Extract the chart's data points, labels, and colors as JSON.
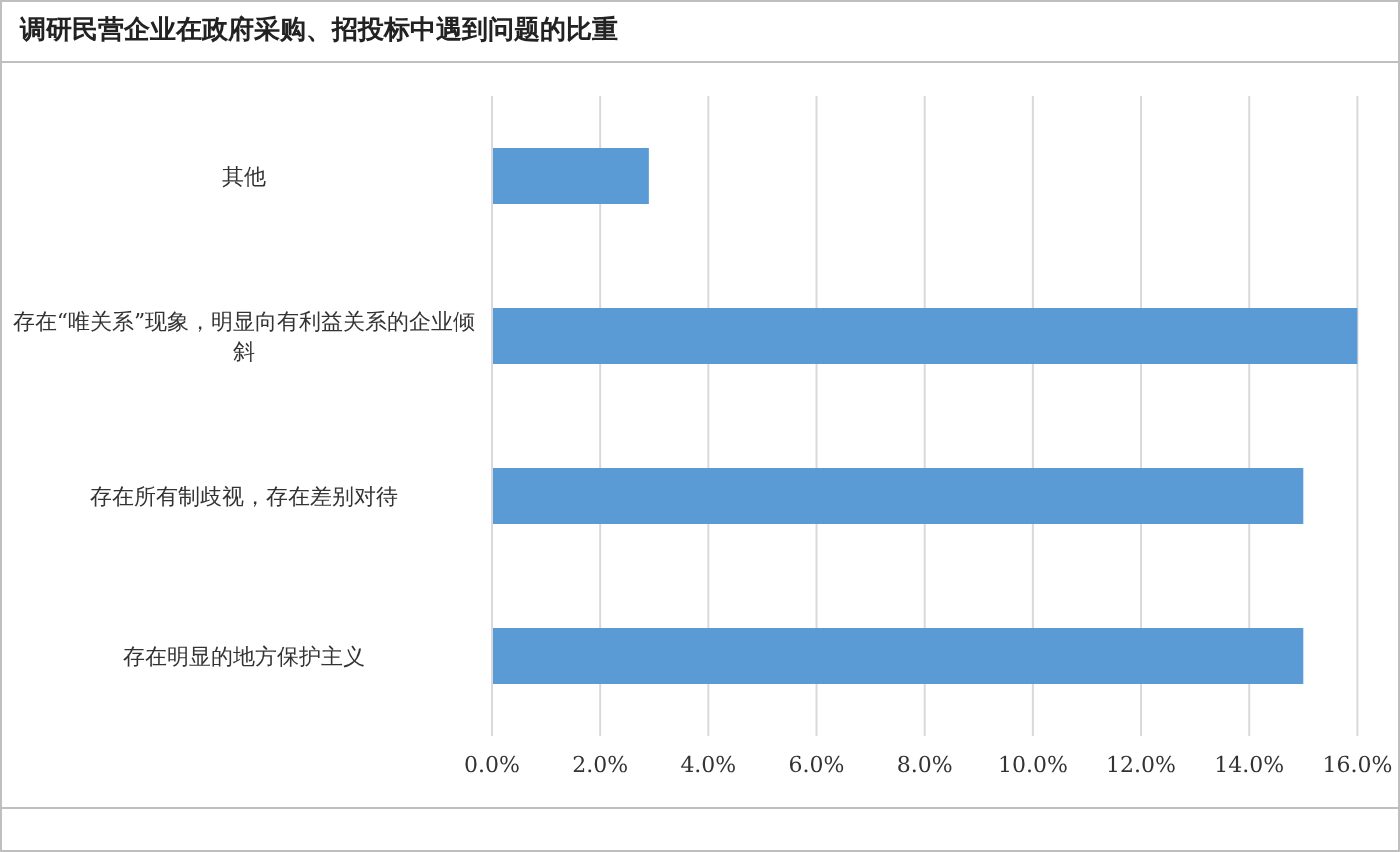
{
  "chart_data": {
    "type": "bar",
    "orientation": "horizontal",
    "title": "调研民营企业在政府采购、招投标中遇到问题的比重",
    "categories": [
      "其他",
      "存在“唯关系”现象，明显向有利益关系的企业倾斜",
      "存在所有制歧视，存在差别对待",
      "存在明显的地方保护主义"
    ],
    "values": [
      2.9,
      16.0,
      15.0,
      15.0
    ],
    "color": "#5b9bd5",
    "xlim": [
      0,
      16
    ],
    "xticks": [
      {
        "value": 0,
        "label": "0.0%"
      },
      {
        "value": 2,
        "label": "2.0%"
      },
      {
        "value": 4,
        "label": "4.0%"
      },
      {
        "value": 6,
        "label": "6.0%"
      },
      {
        "value": 8,
        "label": "8.0%"
      },
      {
        "value": 10,
        "label": "10.0%"
      },
      {
        "value": 12,
        "label": "12.0%"
      },
      {
        "value": 14,
        "label": "14.0%"
      },
      {
        "value": 16,
        "label": "16.0%"
      }
    ],
    "grid": "x"
  }
}
